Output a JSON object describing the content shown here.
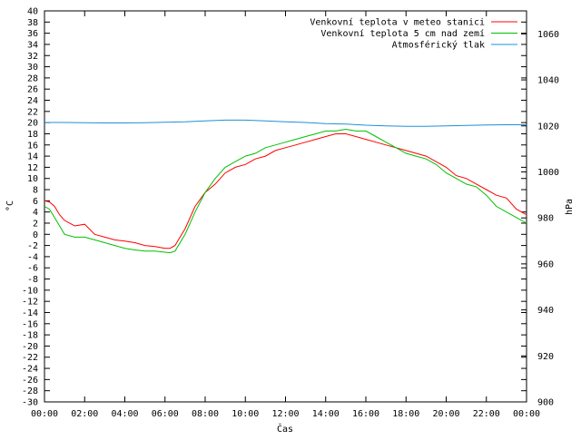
{
  "chart_data": {
    "type": "line",
    "xlabel": "Čas",
    "ylabel": "°C",
    "y2label": "hPa",
    "xlim": [
      0,
      24
    ],
    "ylim": [
      -30,
      40
    ],
    "y2lim": [
      900,
      1070
    ],
    "x_ticks": [
      0,
      2,
      4,
      6,
      8,
      10,
      12,
      14,
      16,
      18,
      20,
      22,
      24
    ],
    "x_tick_labels": [
      "00:00",
      "02:00",
      "04:00",
      "06:00",
      "08:00",
      "10:00",
      "12:00",
      "14:00",
      "16:00",
      "18:00",
      "20:00",
      "22:00",
      "00:00"
    ],
    "y_ticks": [
      -30,
      -28,
      -26,
      -24,
      -22,
      -20,
      -18,
      -16,
      -14,
      -12,
      -10,
      -8,
      -6,
      -4,
      -2,
      0,
      2,
      4,
      6,
      8,
      10,
      12,
      14,
      16,
      18,
      20,
      22,
      24,
      26,
      28,
      30,
      32,
      34,
      36,
      38,
      40
    ],
    "y2_ticks": [
      900,
      920,
      940,
      960,
      980,
      1000,
      1020,
      1040,
      1060
    ],
    "grid": false,
    "legend_position": "top-right",
    "series": [
      {
        "name": "Venkovní teplota v meteo stanici",
        "axis": "left",
        "color": "#ff0000",
        "x": [
          0,
          0.25,
          0.5,
          0.75,
          1,
          1.5,
          2,
          2.5,
          3,
          3.5,
          4,
          4.5,
          5,
          5.5,
          6,
          6.25,
          6.5,
          7,
          7.5,
          8,
          8.5,
          9,
          9.5,
          10,
          10.5,
          11,
          11.5,
          12,
          12.5,
          13,
          13.5,
          14,
          14.5,
          15,
          15.5,
          16,
          16.5,
          17,
          17.5,
          18,
          18.5,
          19,
          19.5,
          20,
          20.5,
          21,
          21.5,
          22,
          22.5,
          23,
          23.5,
          24
        ],
        "y": [
          6,
          5.8,
          5,
          3.5,
          2.5,
          1.5,
          1.8,
          0,
          -0.5,
          -1,
          -1.2,
          -1.5,
          -2,
          -2.2,
          -2.5,
          -2.5,
          -2,
          1,
          5,
          7.5,
          9,
          11,
          12,
          12.5,
          13.5,
          14,
          15,
          15.5,
          16,
          16.5,
          17,
          17.5,
          18,
          18,
          17.5,
          17,
          16.5,
          16,
          15.5,
          15,
          14.5,
          14,
          13,
          12,
          10.5,
          10,
          9,
          8,
          7,
          6.5,
          4.5,
          3.5
        ]
      },
      {
        "name": "Venkovní teplota 5 cm nad zemí",
        "axis": "left",
        "color": "#00c000",
        "x": [
          0,
          0.25,
          0.5,
          0.75,
          1,
          1.5,
          2,
          2.5,
          3,
          3.5,
          4,
          4.5,
          5,
          5.5,
          6,
          6.25,
          6.5,
          7,
          7.5,
          8,
          8.5,
          9,
          9.5,
          10,
          10.5,
          11,
          11.5,
          12,
          12.5,
          13,
          13.5,
          14,
          14.5,
          15,
          15.5,
          16,
          16.5,
          17,
          17.5,
          18,
          18.5,
          19,
          19.5,
          20,
          20.5,
          21,
          21.5,
          22,
          22.5,
          23,
          23.5,
          24
        ],
        "y": [
          5,
          4.5,
          3,
          1.5,
          0,
          -0.5,
          -0.5,
          -1,
          -1.5,
          -2,
          -2.5,
          -2.8,
          -3,
          -3,
          -3.2,
          -3.3,
          -3,
          0,
          4,
          7.5,
          10,
          12,
          13,
          14,
          14.5,
          15.5,
          16,
          16.5,
          17,
          17.5,
          18,
          18.5,
          18.5,
          18.8,
          18.5,
          18.5,
          17.5,
          16.5,
          15.5,
          14.5,
          14,
          13.5,
          12.5,
          11,
          10,
          9,
          8.5,
          7,
          5,
          4,
          3,
          2
        ]
      },
      {
        "name": "Atmosférický tlak",
        "axis": "right",
        "color": "#1e90d8",
        "x": [
          0,
          1,
          2,
          3,
          4,
          5,
          6,
          7,
          8,
          9,
          10,
          11,
          12,
          13,
          14,
          15,
          16,
          17,
          18,
          19,
          20,
          21,
          22,
          23,
          24
        ],
        "y": [
          1021.5,
          1021.5,
          1021.4,
          1021.3,
          1021.3,
          1021.4,
          1021.6,
          1021.8,
          1022.2,
          1022.5,
          1022.5,
          1022.2,
          1021.8,
          1021.5,
          1021,
          1020.8,
          1020.3,
          1020,
          1019.8,
          1019.8,
          1020,
          1020.2,
          1020.4,
          1020.5,
          1020.5
        ]
      }
    ]
  }
}
